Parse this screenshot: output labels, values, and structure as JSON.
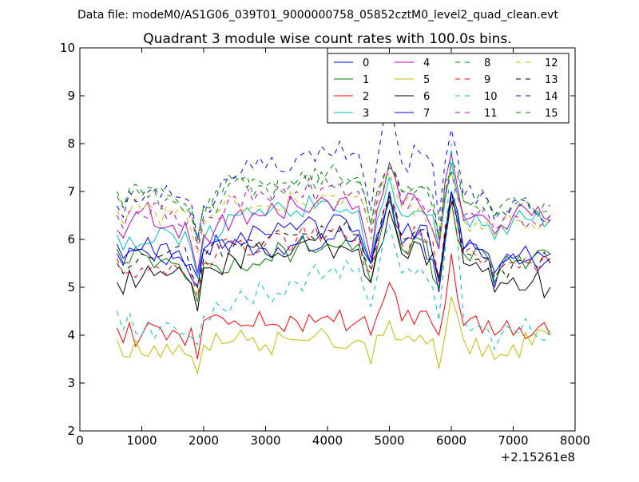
{
  "header": "Data file: modeM0/AS1G06_039T01_9000000758_05852cztM0_level2_quad_clean.evt",
  "chart_data": {
    "type": "line",
    "title": "Quadrant 3 module wise count rates with 100.0s bins.",
    "xlabel": "",
    "ylabel": "",
    "x_offset_label": "+2.15261e8",
    "xlim": [
      0,
      8000
    ],
    "ylim": [
      2,
      10
    ],
    "xticks": [
      0,
      1000,
      2000,
      3000,
      4000,
      5000,
      6000,
      7000,
      8000
    ],
    "yticks": [
      2,
      3,
      4,
      5,
      6,
      7,
      8,
      9,
      10
    ],
    "xtick_labels": [
      "0",
      "1000",
      "2000",
      "3000",
      "4000",
      "5000",
      "6000",
      "7000",
      "8000"
    ],
    "ytick_labels": [
      "2",
      "3",
      "4",
      "5",
      "6",
      "7",
      "8",
      "9",
      "10"
    ],
    "legend_position": "top-right",
    "grid": false,
    "x_start": 600,
    "x_step": 100,
    "anchors": [
      600,
      1000,
      1500,
      1850,
      1900,
      1950,
      2000,
      2500,
      3000,
      3500,
      4000,
      4500,
      4700,
      4800,
      5000,
      5200,
      5500,
      5750,
      5800,
      5850,
      6000,
      6200,
      6600,
      6700,
      6800,
      7000,
      7300,
      7600
    ],
    "series": [
      {
        "name": "0",
        "color": "#0000ff",
        "dash": "solid",
        "base": [
          5.9,
          5.8,
          5.7,
          5.5,
          5.2,
          5.0,
          5.8,
          5.9,
          5.8,
          5.9,
          6.0,
          6.1,
          5.5,
          6.0,
          6.8,
          5.9,
          6.2,
          5.3,
          4.9,
          5.6,
          6.8,
          5.8,
          5.6,
          5.0,
          5.5,
          5.6,
          5.6,
          5.7
        ]
      },
      {
        "name": "1",
        "color": "#008000",
        "dash": "solid",
        "base": [
          5.8,
          5.7,
          5.5,
          5.3,
          4.7,
          4.6,
          5.5,
          5.6,
          5.6,
          5.8,
          5.9,
          5.9,
          5.1,
          5.8,
          6.9,
          5.8,
          6.0,
          5.3,
          5.0,
          5.4,
          6.8,
          5.7,
          5.6,
          5.1,
          5.4,
          5.5,
          5.6,
          5.7
        ]
      },
      {
        "name": "2",
        "color": "#ff0000",
        "dash": "solid",
        "base": [
          4.15,
          4.0,
          4.1,
          4.0,
          3.5,
          3.3,
          4.3,
          4.3,
          4.2,
          4.3,
          4.4,
          4.3,
          4.0,
          4.4,
          5.1,
          4.3,
          4.5,
          4.2,
          4.0,
          4.4,
          5.7,
          4.2,
          4.3,
          4.0,
          4.1,
          4.0,
          4.0,
          4.0
        ]
      },
      {
        "name": "3",
        "color": "#00bfbf",
        "dash": "solid",
        "base": [
          6.1,
          5.9,
          6.1,
          5.8,
          5.2,
          4.9,
          6.0,
          6.5,
          6.5,
          6.6,
          6.8,
          6.6,
          5.5,
          6.4,
          7.3,
          6.5,
          6.6,
          6.3,
          5.8,
          6.4,
          7.6,
          6.5,
          6.3,
          6.0,
          6.3,
          6.4,
          6.4,
          6.4
        ]
      },
      {
        "name": "4",
        "color": "#bf00bf",
        "dash": "solid",
        "base": [
          6.2,
          6.6,
          6.3,
          6.1,
          5.3,
          5.1,
          6.1,
          6.5,
          6.5,
          6.7,
          6.8,
          6.7,
          5.6,
          6.6,
          7.6,
          6.7,
          6.7,
          6.3,
          5.8,
          6.6,
          7.8,
          6.4,
          6.4,
          6.1,
          6.3,
          6.5,
          6.5,
          6.4
        ]
      },
      {
        "name": "5",
        "color": "#bfbf00",
        "dash": "solid",
        "base": [
          3.9,
          3.6,
          3.6,
          3.4,
          3.2,
          2.9,
          3.8,
          3.9,
          3.8,
          3.9,
          4.0,
          3.9,
          3.4,
          4.0,
          4.3,
          3.9,
          4.0,
          3.9,
          3.3,
          3.8,
          4.8,
          3.9,
          3.8,
          3.5,
          3.6,
          3.8,
          3.8,
          4.0
        ]
      },
      {
        "name": "6",
        "color": "#000000",
        "dash": "solid",
        "base": [
          5.1,
          5.2,
          5.3,
          5.1,
          4.5,
          4.2,
          5.4,
          5.6,
          5.7,
          5.9,
          5.9,
          5.8,
          5.1,
          5.7,
          6.6,
          5.7,
          5.9,
          5.4,
          5.1,
          5.6,
          7.0,
          5.5,
          5.4,
          4.9,
          5.1,
          5.2,
          5.1,
          5.0
        ]
      },
      {
        "name": "7",
        "color": "#0000ff",
        "dash": "solid",
        "base": [
          5.7,
          5.8,
          5.6,
          5.4,
          5.0,
          4.8,
          5.8,
          6.0,
          6.1,
          6.2,
          6.3,
          6.2,
          5.5,
          6.1,
          7.0,
          6.1,
          6.3,
          5.7,
          5.2,
          5.9,
          7.0,
          5.8,
          5.7,
          5.3,
          5.5,
          5.7,
          5.6,
          5.6
        ]
      },
      {
        "name": "8",
        "color": "#008000",
        "dash": "dash",
        "base": [
          7.0,
          6.9,
          6.8,
          6.5,
          5.9,
          5.6,
          6.5,
          7.3,
          7.1,
          7.2,
          7.4,
          7.3,
          6.3,
          7.0,
          7.6,
          7.0,
          7.1,
          6.8,
          6.0,
          6.7,
          7.6,
          6.8,
          6.8,
          6.5,
          6.7,
          6.9,
          6.7,
          6.7
        ]
      },
      {
        "name": "9",
        "color": "#ff0000",
        "dash": "dash",
        "base": [
          5.6,
          5.4,
          5.5,
          5.3,
          4.8,
          4.6,
          5.6,
          5.9,
          5.9,
          6.0,
          6.1,
          6.0,
          5.3,
          5.9,
          6.8,
          5.9,
          6.1,
          5.6,
          5.1,
          5.8,
          6.8,
          5.7,
          5.6,
          5.2,
          5.4,
          5.5,
          5.5,
          5.5
        ]
      },
      {
        "name": "10",
        "color": "#00bfbf",
        "dash": "dash",
        "base": [
          4.5,
          4.0,
          4.2,
          4.2,
          3.8,
          3.7,
          4.4,
          4.7,
          4.9,
          5.1,
          5.3,
          5.4,
          4.6,
          5.2,
          6.3,
          5.3,
          5.4,
          5.0,
          4.3,
          5.0,
          8.0,
          4.3,
          4.1,
          3.7,
          4.0,
          4.1,
          4.1,
          4.1
        ]
      },
      {
        "name": "11",
        "color": "#bf00bf",
        "dash": "dash",
        "base": [
          6.5,
          6.5,
          6.6,
          6.4,
          5.8,
          5.5,
          6.4,
          6.9,
          6.9,
          7.0,
          7.1,
          7.0,
          6.1,
          6.8,
          7.5,
          6.8,
          6.8,
          6.5,
          6.0,
          6.7,
          7.4,
          6.5,
          6.5,
          6.2,
          6.3,
          6.5,
          6.4,
          6.4
        ]
      },
      {
        "name": "12",
        "color": "#bfbf00",
        "dash": "dash",
        "base": [
          6.6,
          6.6,
          6.5,
          6.2,
          5.7,
          5.5,
          6.3,
          6.8,
          6.7,
          6.8,
          6.9,
          6.9,
          6.0,
          6.7,
          7.4,
          6.7,
          6.7,
          6.4,
          5.9,
          6.6,
          7.4,
          6.4,
          6.4,
          6.1,
          6.2,
          6.4,
          6.3,
          6.3
        ]
      },
      {
        "name": "13",
        "color": "#000000",
        "dash": "dash",
        "base": [
          5.5,
          5.7,
          5.8,
          5.5,
          5.0,
          4.7,
          5.6,
          5.9,
          6.0,
          6.1,
          6.2,
          6.1,
          5.4,
          6.0,
          6.9,
          6.0,
          6.2,
          5.6,
          5.2,
          5.8,
          6.9,
          5.7,
          5.6,
          5.2,
          5.4,
          5.5,
          5.5,
          5.5
        ]
      },
      {
        "name": "14",
        "color": "#0000ff",
        "dash": "dash",
        "base": [
          6.7,
          6.8,
          6.9,
          6.6,
          6.0,
          5.5,
          6.7,
          7.3,
          7.5,
          7.7,
          7.8,
          7.8,
          6.6,
          7.6,
          9.1,
          7.6,
          7.8,
          7.3,
          6.4,
          7.2,
          8.3,
          6.9,
          6.8,
          6.4,
          6.6,
          6.8,
          6.6,
          6.5
        ]
      },
      {
        "name": "15",
        "color": "#008000",
        "dash": "dash",
        "base": [
          6.9,
          7.0,
          6.9,
          6.5,
          6.0,
          5.7,
          6.7,
          7.2,
          7.1,
          7.1,
          7.2,
          7.2,
          6.3,
          7.0,
          7.5,
          7.0,
          7.1,
          6.8,
          6.1,
          6.7,
          7.4,
          6.8,
          6.8,
          6.5,
          6.6,
          6.7,
          6.6,
          6.6
        ]
      }
    ]
  }
}
